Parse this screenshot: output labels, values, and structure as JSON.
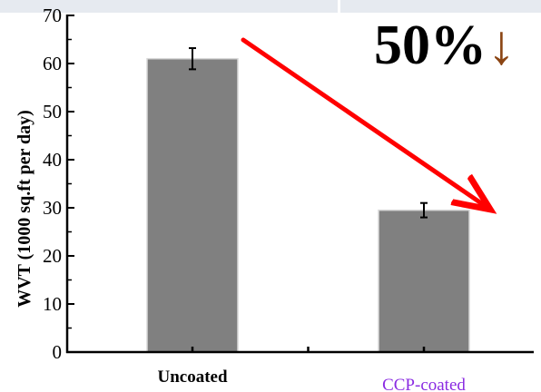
{
  "chart_data": {
    "type": "bar",
    "categories": [
      "Uncoated",
      "CCP-coated"
    ],
    "values": [
      61,
      29.5
    ],
    "errors": [
      2.2,
      1.5
    ],
    "title": "",
    "xlabel": "",
    "ylabel": "WVT (1000 sq.ft per day)",
    "ylim": [
      0,
      70
    ],
    "yticks": [
      0,
      10,
      20,
      30,
      40,
      50,
      60,
      70
    ],
    "grid": false,
    "annotation": {
      "text": "50%",
      "arrow_glyph": "↓",
      "meaning": "decrease"
    },
    "colors": {
      "bar": "#808080",
      "bar_outline": "#d9d9d9",
      "axis": "#000000",
      "trend_arrow": "#ff0000",
      "annotation_text": "#000000",
      "annotation_arrow": "#8b4513",
      "category_label_1": "#000000",
      "category_label_2": "#8a2be2",
      "top_strip": "#e6eaf0"
    }
  }
}
